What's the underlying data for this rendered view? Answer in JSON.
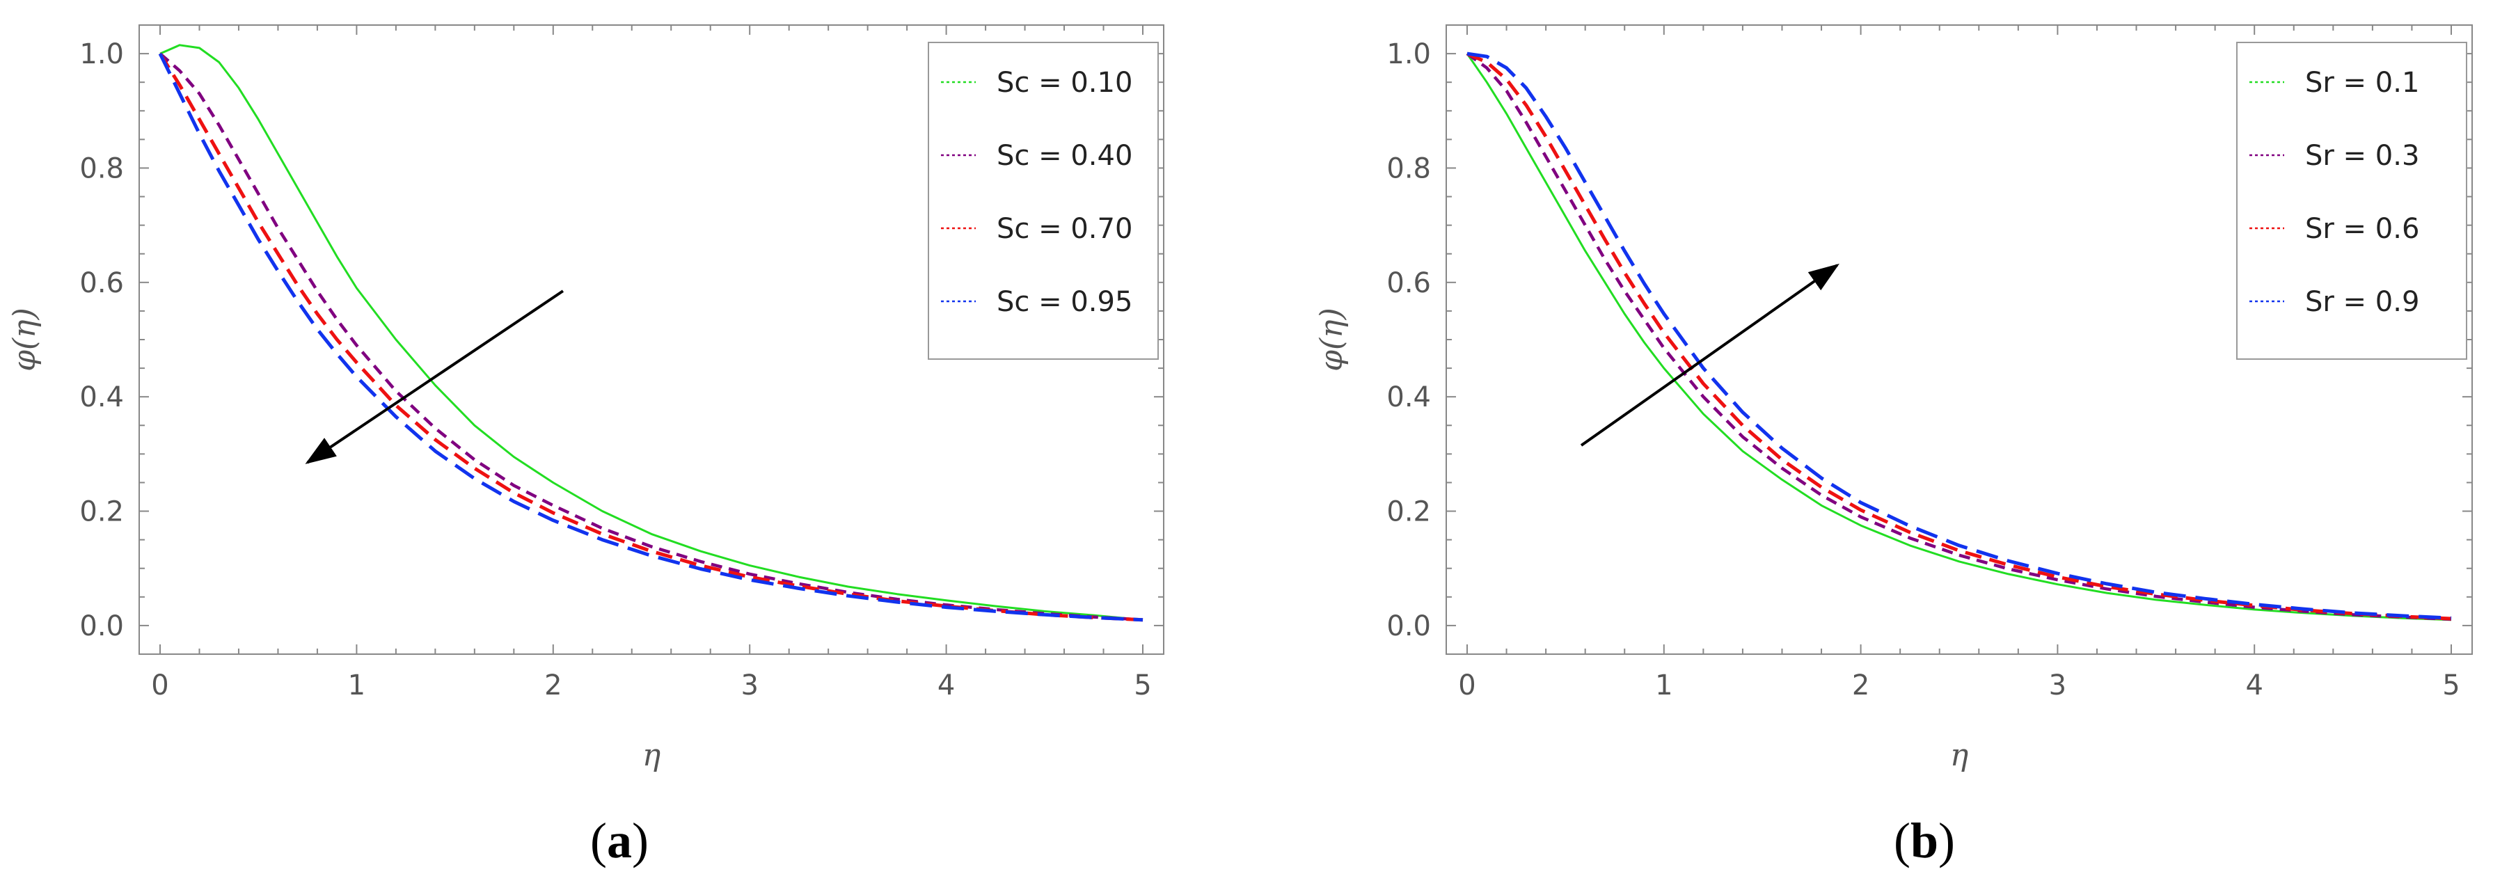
{
  "chart_data": [
    {
      "type": "line",
      "panel_label": "a",
      "xlabel": "η",
      "ylabel": "φ(η)",
      "xlim": [
        0,
        5
      ],
      "ylim": [
        -0.05,
        1.05
      ],
      "x_ticks": [
        "0",
        "1",
        "2",
        "3",
        "4",
        "5"
      ],
      "y_ticks": [
        "0.0",
        "0.2",
        "0.4",
        "0.6",
        "0.8",
        "1.0"
      ],
      "legend_position": "top-right",
      "x": [
        0,
        0.1,
        0.2,
        0.3,
        0.4,
        0.5,
        0.6,
        0.7,
        0.8,
        0.9,
        1.0,
        1.2,
        1.4,
        1.6,
        1.8,
        2.0,
        2.25,
        2.5,
        2.75,
        3.0,
        3.25,
        3.5,
        3.75,
        4.0,
        4.25,
        4.5,
        4.75,
        5.0
      ],
      "series": [
        {
          "name": "Sc = 0.10",
          "color": "#22dd22",
          "dash": "solid",
          "width": 3,
          "values": [
            1.0,
            1.015,
            1.01,
            0.985,
            0.94,
            0.885,
            0.825,
            0.765,
            0.705,
            0.645,
            0.59,
            0.5,
            0.42,
            0.35,
            0.295,
            0.25,
            0.2,
            0.16,
            0.13,
            0.105,
            0.085,
            0.068,
            0.055,
            0.044,
            0.034,
            0.025,
            0.018,
            0.01
          ]
        },
        {
          "name": "Sc = 0.40",
          "color": "#800080",
          "dash": "16,10",
          "width": 4.5,
          "values": [
            1.0,
            0.97,
            0.93,
            0.875,
            0.815,
            0.755,
            0.695,
            0.64,
            0.585,
            0.535,
            0.49,
            0.41,
            0.345,
            0.29,
            0.245,
            0.21,
            0.17,
            0.138,
            0.112,
            0.09,
            0.073,
            0.058,
            0.046,
            0.036,
            0.028,
            0.021,
            0.015,
            0.01
          ]
        },
        {
          "name": "Sc = 0.70",
          "color": "#ee1111",
          "dash": "24,12",
          "width": 5,
          "values": [
            1.0,
            0.945,
            0.885,
            0.825,
            0.765,
            0.705,
            0.65,
            0.595,
            0.545,
            0.5,
            0.46,
            0.385,
            0.325,
            0.275,
            0.232,
            0.197,
            0.16,
            0.13,
            0.105,
            0.085,
            0.069,
            0.055,
            0.043,
            0.034,
            0.026,
            0.019,
            0.014,
            0.01
          ]
        },
        {
          "name": "Sc = 0.95",
          "color": "#1133ee",
          "dash": "32,14",
          "width": 5,
          "values": [
            1.0,
            0.93,
            0.86,
            0.795,
            0.735,
            0.675,
            0.62,
            0.567,
            0.518,
            0.475,
            0.435,
            0.365,
            0.305,
            0.257,
            0.217,
            0.184,
            0.15,
            0.122,
            0.099,
            0.08,
            0.065,
            0.052,
            0.041,
            0.032,
            0.025,
            0.019,
            0.014,
            0.01
          ]
        }
      ],
      "arrow": {
        "from": [
          2.05,
          0.585
        ],
        "to": [
          0.75,
          0.285
        ]
      }
    },
    {
      "type": "line",
      "panel_label": "b",
      "xlabel": "η",
      "ylabel": "φ(η)",
      "xlim": [
        0,
        5
      ],
      "ylim": [
        -0.05,
        1.05
      ],
      "x_ticks": [
        "0",
        "1",
        "2",
        "3",
        "4",
        "5"
      ],
      "y_ticks": [
        "0.0",
        "0.2",
        "0.4",
        "0.6",
        "0.8",
        "1.0"
      ],
      "legend_position": "top-right",
      "x": [
        0,
        0.1,
        0.2,
        0.3,
        0.4,
        0.5,
        0.6,
        0.7,
        0.8,
        0.9,
        1.0,
        1.2,
        1.4,
        1.6,
        1.8,
        2.0,
        2.25,
        2.5,
        2.75,
        3.0,
        3.25,
        3.5,
        3.75,
        4.0,
        4.25,
        4.5,
        4.75,
        5.0
      ],
      "series": [
        {
          "name": "Sr = 0.1",
          "color": "#22dd22",
          "dash": "solid",
          "width": 3,
          "values": [
            1.0,
            0.95,
            0.895,
            0.835,
            0.775,
            0.715,
            0.655,
            0.6,
            0.545,
            0.495,
            0.45,
            0.37,
            0.305,
            0.255,
            0.21,
            0.175,
            0.14,
            0.112,
            0.09,
            0.072,
            0.057,
            0.045,
            0.036,
            0.028,
            0.022,
            0.017,
            0.013,
            0.01
          ]
        },
        {
          "name": "Sr = 0.3",
          "color": "#800080",
          "dash": "16,10",
          "width": 4.5,
          "values": [
            1.0,
            0.975,
            0.935,
            0.88,
            0.82,
            0.76,
            0.7,
            0.64,
            0.585,
            0.535,
            0.485,
            0.4,
            0.33,
            0.275,
            0.228,
            0.19,
            0.153,
            0.123,
            0.099,
            0.08,
            0.064,
            0.051,
            0.041,
            0.032,
            0.025,
            0.019,
            0.015,
            0.011
          ]
        },
        {
          "name": "Sr = 0.6",
          "color": "#ee1111",
          "dash": "24,12",
          "width": 5,
          "values": [
            1.0,
            0.985,
            0.955,
            0.91,
            0.855,
            0.795,
            0.735,
            0.675,
            0.617,
            0.563,
            0.512,
            0.423,
            0.35,
            0.29,
            0.242,
            0.202,
            0.163,
            0.131,
            0.106,
            0.085,
            0.068,
            0.055,
            0.044,
            0.035,
            0.027,
            0.021,
            0.016,
            0.012
          ]
        },
        {
          "name": "Sr = 0.9",
          "color": "#1133ee",
          "dash": "32,14",
          "width": 5,
          "values": [
            1.0,
            0.995,
            0.975,
            0.94,
            0.89,
            0.835,
            0.775,
            0.715,
            0.655,
            0.598,
            0.545,
            0.45,
            0.373,
            0.31,
            0.258,
            0.215,
            0.174,
            0.14,
            0.113,
            0.091,
            0.073,
            0.058,
            0.047,
            0.037,
            0.029,
            0.022,
            0.017,
            0.013
          ]
        }
      ],
      "arrow": {
        "from": [
          0.58,
          0.315
        ],
        "to": [
          1.88,
          0.63
        ]
      }
    }
  ]
}
